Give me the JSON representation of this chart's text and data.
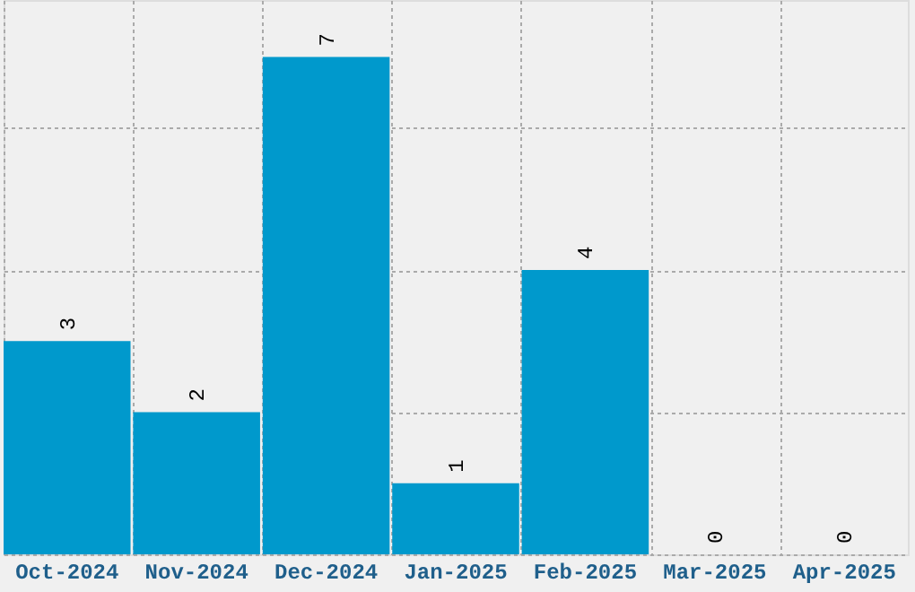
{
  "chart_data": {
    "type": "bar",
    "categories": [
      "Oct-2024",
      "Nov-2024",
      "Dec-2024",
      "Jan-2025",
      "Feb-2025",
      "Mar-2025",
      "Apr-2025"
    ],
    "values": [
      3,
      2,
      7,
      1,
      4,
      0,
      0
    ],
    "color": "#0099cc",
    "data_labels": true,
    "ylim": [
      0,
      7.8
    ],
    "yticks": [
      {
        "value": 0,
        "label": null
      },
      {
        "value": 2,
        "label": null
      },
      {
        "value": 4,
        "label": null
      },
      {
        "value": 6,
        "label": null
      }
    ],
    "grid": true,
    "tick_labels": "x"
  }
}
